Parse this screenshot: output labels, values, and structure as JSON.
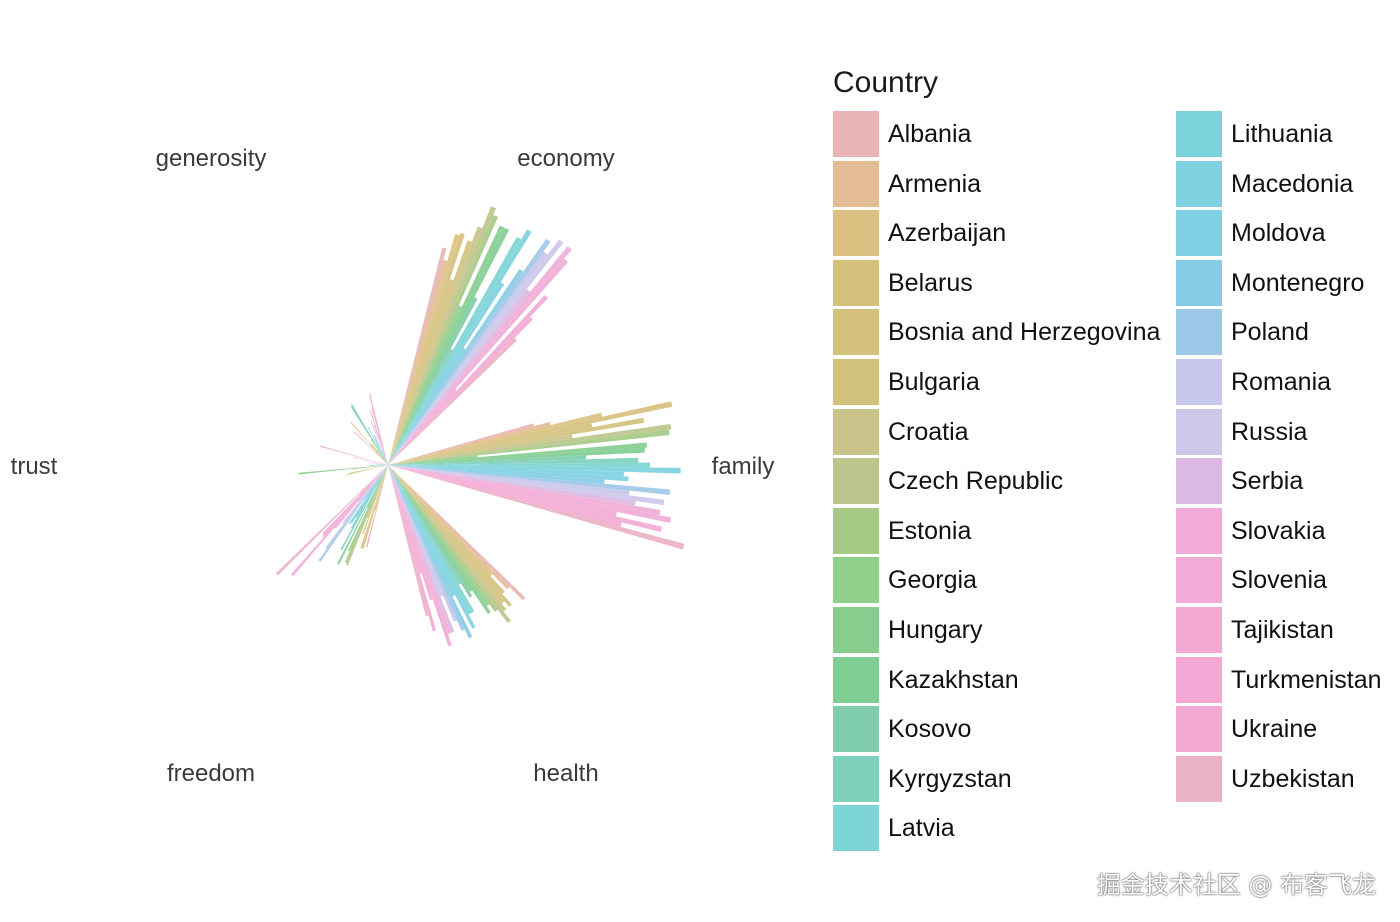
{
  "chart_data": {
    "type": "radial-bar",
    "legend_title": "Country",
    "legend_position": "right",
    "axes": [
      "economy",
      "family",
      "health",
      "freedom",
      "trust",
      "generosity"
    ],
    "countries": [
      {
        "name": "Albania",
        "color": "#e8b4b4",
        "values": {
          "economy": 0.95,
          "family": 0.64,
          "health": 0.81,
          "freedom": 0.36,
          "trust": 0.04,
          "generosity": 0.2
        }
      },
      {
        "name": "Armenia",
        "color": "#e3bb94",
        "values": {
          "economy": 0.9,
          "family": 0.71,
          "health": 0.73,
          "freedom": 0.2,
          "trust": 0.04,
          "generosity": 0.08
        }
      },
      {
        "name": "Azerbaijan",
        "color": "#dcc182",
        "values": {
          "economy": 1.02,
          "family": 0.93,
          "health": 0.64,
          "freedom": 0.37,
          "trust": 0.18,
          "generosity": 0.03
        }
      },
      {
        "name": "Belarus",
        "color": "#d6c17c",
        "values": {
          "economy": 1.03,
          "family": 1.23,
          "health": 0.73,
          "freedom": 0.37,
          "trust": 0.17,
          "generosity": 0.12
        }
      },
      {
        "name": "Bosnia and Herzegovina",
        "color": "#d4c17e",
        "values": {
          "economy": 0.83,
          "family": 0.88,
          "health": 0.79,
          "freedom": 0.1,
          "trust": 0.0,
          "generosity": 0.24
        }
      },
      {
        "name": "Bulgaria",
        "color": "#d2c27c",
        "values": {
          "economy": 1.01,
          "family": 1.1,
          "health": 0.76,
          "freedom": 0.31,
          "trust": 0.01,
          "generosity": 0.11
        }
      },
      {
        "name": "Croatia",
        "color": "#cac48a",
        "values": {
          "economy": 1.08,
          "family": 0.79,
          "health": 0.79,
          "freedom": 0.24,
          "trust": 0.03,
          "generosity": 0.12
        }
      },
      {
        "name": "Czech Republic",
        "color": "#bcc58c",
        "values": {
          "economy": 1.18,
          "family": 1.21,
          "health": 0.84,
          "freedom": 0.46,
          "trust": 0.03,
          "generosity": 0.11
        }
      },
      {
        "name": "Estonia",
        "color": "#a5ca86",
        "values": {
          "economy": 1.15,
          "family": 1.2,
          "health": 0.77,
          "freedom": 0.45,
          "trust": 0.15,
          "generosity": 0.08
        }
      },
      {
        "name": "Georgia",
        "color": "#8fcf8c",
        "values": {
          "economy": 0.74,
          "family": 0.38,
          "health": 0.73,
          "freedom": 0.4,
          "trust": 0.38,
          "generosity": 0.05
        }
      },
      {
        "name": "Hungary",
        "color": "#86cd8e",
        "values": {
          "economy": 1.12,
          "family": 1.1,
          "health": 0.76,
          "freedom": 0.2,
          "trust": 0.02,
          "generosity": 0.08
        }
      },
      {
        "name": "Kazakhstan",
        "color": "#80cd94",
        "values": {
          "economy": 1.12,
          "family": 1.09,
          "health": 0.64,
          "freedom": 0.47,
          "trust": 0.08,
          "generosity": 0.13
        }
      },
      {
        "name": "Kosovo",
        "color": "#7fcdac",
        "values": {
          "economy": 0.8,
          "family": 0.84,
          "health": 0.66,
          "freedom": 0.1,
          "trust": 0.03,
          "generosity": 0.29
        }
      },
      {
        "name": "Kyrgyzstan",
        "color": "#7fd0bb",
        "values": {
          "economy": 0.56,
          "family": 1.06,
          "health": 0.59,
          "freedom": 0.41,
          "trust": 0.08,
          "generosity": 0.3
        }
      },
      {
        "name": "Latvia",
        "color": "#7dd4d4",
        "values": {
          "economy": 1.11,
          "family": 1.11,
          "health": 0.72,
          "freedom": 0.31,
          "trust": 0.06,
          "generosity": 0.1
        }
      },
      {
        "name": "Lithuania",
        "color": "#7dd3dc",
        "values": {
          "economy": 1.16,
          "family": 1.24,
          "health": 0.72,
          "freedom": 0.26,
          "trust": 0.01,
          "generosity": 0.04
        }
      },
      {
        "name": "Macedonia",
        "color": "#7dd1e0",
        "values": {
          "economy": 0.91,
          "family": 1.0,
          "health": 0.78,
          "freedom": 0.29,
          "trust": 0.04,
          "generosity": 0.18
        }
      },
      {
        "name": "Moldova",
        "color": "#80cfe3",
        "values": {
          "economy": 0.59,
          "family": 1.02,
          "health": 0.62,
          "freedom": 0.3,
          "trust": 0.01,
          "generosity": 0.12
        }
      },
      {
        "name": "Montenegro",
        "color": "#84cde4",
        "values": {
          "economy": 1.0,
          "family": 0.92,
          "health": 0.81,
          "freedom": 0.17,
          "trust": 0.05,
          "generosity": 0.14
        }
      },
      {
        "name": "Poland",
        "color": "#9ec8e8",
        "values": {
          "economy": 1.17,
          "family": 1.2,
          "health": 0.77,
          "freedom": 0.5,
          "trust": 0.08,
          "generosity": 0.14
        }
      },
      {
        "name": "Romania",
        "color": "#c7c8ec",
        "values": {
          "economy": 1.12,
          "family": 1.03,
          "health": 0.72,
          "freedom": 0.44,
          "trust": 0.01,
          "generosity": 0.07
        }
      },
      {
        "name": "Russia",
        "color": "#cdc7ea",
        "values": {
          "economy": 1.2,
          "family": 1.18,
          "health": 0.6,
          "freedom": 0.31,
          "trust": 0.02,
          "generosity": 0.06
        }
      },
      {
        "name": "Serbia",
        "color": "#dcb9e2",
        "values": {
          "economy": 0.95,
          "family": 1.06,
          "health": 0.76,
          "freedom": 0.2,
          "trust": 0.03,
          "generosity": 0.2
        }
      },
      {
        "name": "Slovakia",
        "color": "#f1acd8",
        "values": {
          "economy": 1.2,
          "family": 1.17,
          "health": 0.76,
          "freedom": 0.35,
          "trust": 0.03,
          "generosity": 0.06
        }
      },
      {
        "name": "Slovenia",
        "color": "#f2abd6",
        "values": {
          "economy": 1.15,
          "family": 1.22,
          "health": 0.81,
          "freedom": 0.62,
          "trust": 0.07,
          "generosity": 0.18
        }
      },
      {
        "name": "Tajikistan",
        "color": "#f3a9d4",
        "values": {
          "economy": 0.43,
          "family": 0.99,
          "health": 0.6,
          "freedom": 0.41,
          "trust": 0.15,
          "generosity": 0.24
        }
      },
      {
        "name": "Turkmenistan",
        "color": "#f2a9d6",
        "values": {
          "economy": 0.98,
          "family": 1.19,
          "health": 0.48,
          "freedom": 0.4,
          "trust": 0.04,
          "generosity": 0.14
        }
      },
      {
        "name": "Ukraine",
        "color": "#f2aad4",
        "values": {
          "economy": 0.87,
          "family": 1.02,
          "health": 0.73,
          "freedom": 0.17,
          "trust": 0.03,
          "generosity": 0.25
        }
      },
      {
        "name": "Uzbekistan",
        "color": "#eab2c2",
        "values": {
          "economy": 0.76,
          "family": 1.3,
          "health": 0.66,
          "freedom": 0.66,
          "trust": 0.3,
          "generosity": 0.31
        }
      }
    ]
  },
  "watermark": "掘金技术社区 @ 布客飞龙"
}
